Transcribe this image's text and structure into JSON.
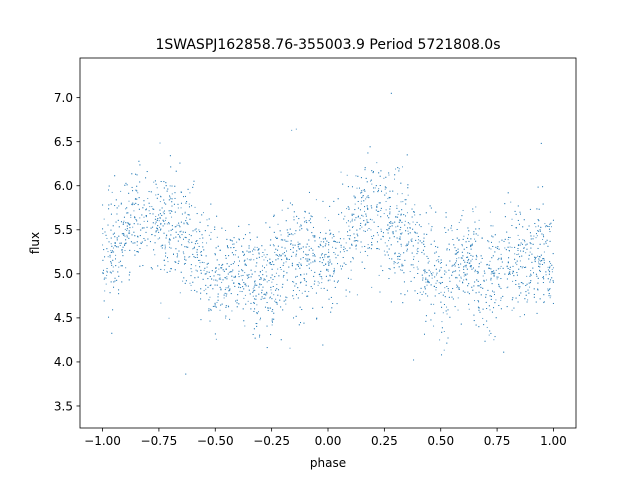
{
  "chart_data": {
    "type": "scatter",
    "title": "1SWASPJ162858.76-355003.9 Period 5721808.0s",
    "xlabel": "phase",
    "ylabel": "flux",
    "xlim": [
      -1.1,
      1.1
    ],
    "ylim": [
      3.25,
      7.45
    ],
    "xticks": [
      -1.0,
      -0.75,
      -0.5,
      -0.25,
      0.0,
      0.25,
      0.5,
      0.75,
      1.0
    ],
    "xtick_labels": [
      "−1.00",
      "−0.75",
      "−0.50",
      "−0.25",
      "0.00",
      "0.25",
      "0.50",
      "0.75",
      "1.00"
    ],
    "yticks": [
      3.5,
      4.0,
      4.5,
      5.0,
      5.5,
      6.0,
      6.5,
      7.0
    ],
    "ytick_labels": [
      "3.5",
      "4.0",
      "4.5",
      "5.0",
      "5.5",
      "6.0",
      "6.5",
      "7.0"
    ],
    "grid": false,
    "legend": "none",
    "marker_color": "#1f77b4",
    "series": [
      {
        "profile_phase": [
          0.0,
          0.05,
          0.1,
          0.15,
          0.2,
          0.25,
          0.3,
          0.35,
          0.4,
          0.45,
          0.5,
          0.55,
          0.6,
          0.65,
          0.7,
          0.75,
          0.8,
          0.85,
          0.9,
          0.95,
          1.0
        ],
        "profile_mean_flux": [
          5.15,
          5.25,
          5.45,
          5.6,
          5.65,
          5.55,
          5.5,
          5.45,
          5.3,
          5.1,
          4.95,
          4.95,
          5.05,
          5.05,
          4.9,
          4.95,
          5.1,
          5.15,
          5.2,
          5.2,
          5.2
        ],
        "scatter_sigma": 0.3,
        "y_min": 3.4,
        "y_max": 7.3
      }
    ]
  }
}
